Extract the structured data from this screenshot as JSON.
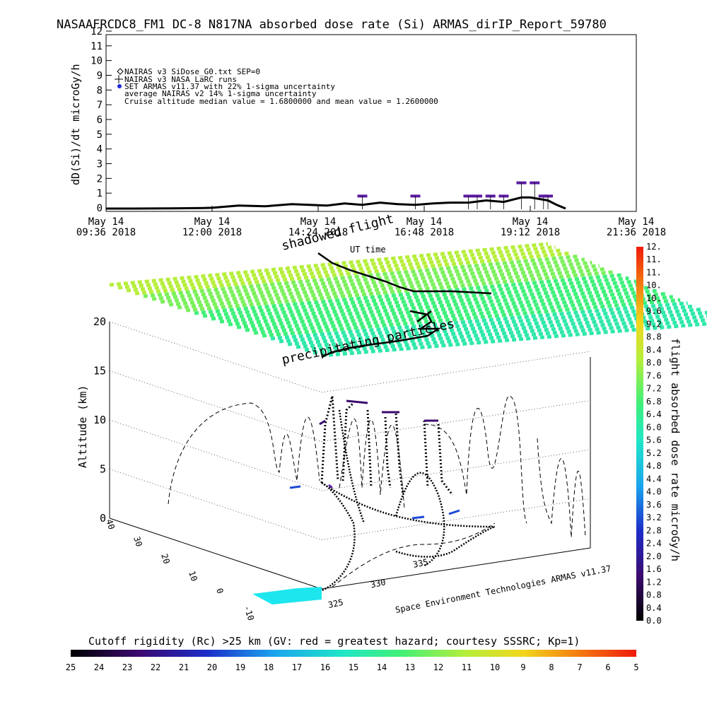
{
  "title": "NASAAFRCDC8_FM1 DC-8   N817NA absorbed dose rate (Si) ARMAS_dirIP_Report_59780",
  "chart_data": [
    {
      "type": "line",
      "panel": "top",
      "ylabel": "dD(Si)/dt microGy/h",
      "ylim": [
        0,
        12
      ],
      "yticks": [
        "0",
        "1",
        "2",
        "3",
        "4",
        "5",
        "6",
        "7",
        "8",
        "9",
        "10",
        "11",
        "12"
      ],
      "xticks": [
        {
          "date": "May 14",
          "time": "09:36 2018"
        },
        {
          "date": "May 14",
          "time": "12:00 2018"
        },
        {
          "date": "May 14",
          "time": "14:24 2018"
        },
        {
          "date": "May 14",
          "time": "16:48 2018"
        },
        {
          "date": "May 14",
          "time": "19:12 2018"
        },
        {
          "date": "May 14",
          "time": "21:36 2018"
        }
      ],
      "legend": [
        "NAIRAS v3 SiDose_G0.txt SEP=0",
        "NAIRAS v3 NASA LaRC runs",
        "SET ARMAS v11.37 with 22% 1-sigma uncertainty",
        "average NAIRAS v2 14% 1-sigma uncertainty",
        "Cruise altitude median value = 1.6800000 and mean value = 1.2600000"
      ],
      "legend_position": "top-left",
      "series": [
        {
          "name": "NAIRAS v3 SiDose_G0.txt SEP=0",
          "x_hours": [
            9.6,
            10.2,
            11.0,
            11.8,
            12.0,
            12.6,
            13.2,
            13.8,
            14.2,
            14.6,
            15.0,
            15.4,
            15.8,
            16.2,
            16.6,
            17.0,
            17.4,
            17.8,
            18.2,
            18.6,
            19.0,
            19.2,
            19.4,
            19.6,
            19.8,
            20.0
          ],
          "values": [
            0.05,
            0.05,
            0.06,
            0.08,
            0.1,
            0.25,
            0.2,
            0.35,
            0.3,
            0.25,
            0.4,
            0.3,
            0.45,
            0.35,
            0.3,
            0.4,
            0.45,
            0.45,
            0.6,
            0.5,
            0.8,
            0.8,
            0.7,
            0.6,
            0.3,
            0.05
          ]
        },
        {
          "name": "SET ARMAS v11.37 with 22% 1-sigma uncertainty",
          "x_hours": [
            15.4,
            16.6,
            17.8,
            18.0,
            18.3,
            18.6,
            19.0,
            19.3,
            19.5,
            19.6
          ],
          "values": [
            0.8,
            0.8,
            0.8,
            0.8,
            0.8,
            0.8,
            1.7,
            1.7,
            0.8,
            0.8
          ]
        }
      ]
    },
    {
      "type": "line",
      "panel": "bottom-3d",
      "ylabel": "Altitude (km)",
      "zticks": [
        "0",
        "5",
        "10",
        "15",
        "20"
      ],
      "x_axis_ticks": [
        "-10",
        "0",
        "10",
        "20",
        "30",
        "40"
      ],
      "y_axis_ticks": [
        "325",
        "330",
        "335"
      ],
      "top_plane_label": "UT time",
      "annotations": [
        "shadowed flight",
        "precipitating particles"
      ],
      "credit": "Space Environment Technologies ARMAS v11.37"
    }
  ],
  "colorbar_right": {
    "label": "flight absorbed dose rate microGy/h",
    "ticks": [
      "0.0",
      "0.4",
      "0.8",
      "1.2",
      "1.6",
      "2.0",
      "2.4",
      "2.8",
      "3.2",
      "3.6",
      "4.0",
      "4.4",
      "4.8",
      "5.2",
      "5.6",
      "6.0",
      "6.4",
      "6.8",
      "7.2",
      "7.6",
      "8.0",
      "8.4",
      "8.8",
      "9.2",
      "9.6",
      "10.",
      "10.",
      "11.",
      "11.",
      "12."
    ]
  },
  "colorbar_bottom": {
    "label": "Cutoff rigidity (Rc) >25 km (GV: red = greatest hazard; courtesy SSSRC; Kp=1)",
    "ticks": [
      "25",
      "24",
      "23",
      "22",
      "21",
      "20",
      "19",
      "18",
      "17",
      "16",
      "15",
      "14",
      "13",
      "12",
      "11",
      "10",
      "9",
      "8",
      "7",
      "6",
      "5"
    ]
  }
}
